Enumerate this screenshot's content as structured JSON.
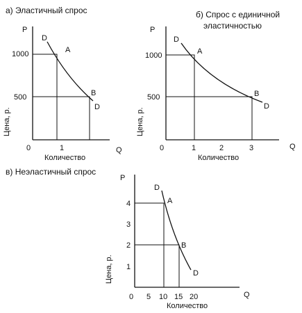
{
  "panel_a": {
    "title": "а) Эластичный спрос",
    "p_label": "P",
    "q_label": "Q",
    "y_axis_label": "Цена, р.",
    "x_axis_label": "Количество",
    "origin": "0",
    "y_ticks": [
      "1000",
      "500"
    ],
    "x_ticks": [
      "1"
    ],
    "point_a": "A",
    "point_b": "B",
    "d_start": "D",
    "d_end": "D"
  },
  "panel_b": {
    "title_line1": "б) Спрос с единичной",
    "title_line2": "эластичностью",
    "p_label": "P",
    "q_label": "Q",
    "y_axis_label": "Цена, р.",
    "x_axis_label": "Количество",
    "origin": "0",
    "y_ticks": [
      "1000",
      "500"
    ],
    "x_ticks": [
      "1",
      "2",
      "3"
    ],
    "point_a": "A",
    "point_b": "B",
    "d_start": "D",
    "d_end": "D"
  },
  "panel_c": {
    "title": "в) Неэластичный спрос",
    "p_label": "P",
    "q_label": "Q",
    "y_axis_label": "Цена, р.",
    "x_axis_label": "Количество",
    "origin": "0",
    "y_ticks": [
      "4",
      "3",
      "2",
      "1"
    ],
    "x_ticks": [
      "5",
      "10",
      "15",
      "20"
    ],
    "point_a": "A",
    "point_b": "B",
    "d_start": "D",
    "d_end": "D"
  }
}
